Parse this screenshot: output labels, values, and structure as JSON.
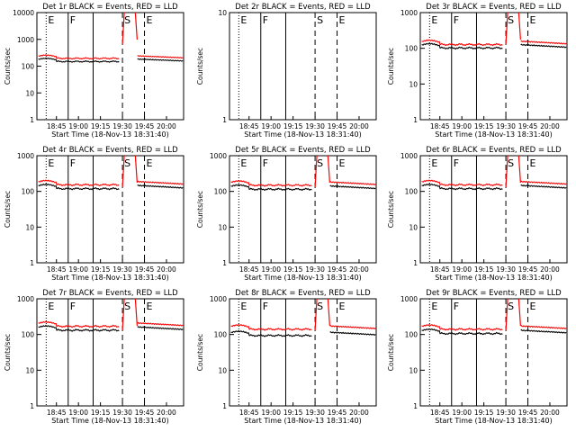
{
  "figure": {
    "panels": [
      {
        "title": "Det 1r BLACK = Events, RED = LLD",
        "markers": [
          "E",
          "F",
          "S",
          "E"
        ],
        "has_data": true,
        "black_level": 175,
        "red_level": 230,
        "y_top_label": "10000"
      },
      {
        "title": "Det 2r BLACK = Events, RED = LLD",
        "markers": [
          "E",
          "F",
          "S",
          "E"
        ],
        "has_data": false,
        "y_top_label": "10"
      },
      {
        "title": "Det 3r BLACK = Events, RED = LLD",
        "markers": [
          "E",
          "F",
          "S",
          "E"
        ],
        "has_data": true,
        "black_level": 120,
        "red_level": 150,
        "y_top_label": "1000"
      },
      {
        "title": "Det 4r BLACK = Events, RED = LLD",
        "markers": [
          "E",
          "F",
          "S",
          "E"
        ],
        "has_data": true,
        "black_level": 140,
        "red_level": 180,
        "y_top_label": "1000"
      },
      {
        "title": "Det 5r BLACK = Events, RED = LLD",
        "markers": [
          "E",
          "F",
          "S",
          "E"
        ],
        "has_data": true,
        "black_level": 135,
        "red_level": 175,
        "y_top_label": "1000"
      },
      {
        "title": "Det 6r BLACK = Events, RED = LLD",
        "markers": [
          "E",
          "F",
          "S",
          "E"
        ],
        "has_data": true,
        "black_level": 140,
        "red_level": 180,
        "y_top_label": "1000"
      },
      {
        "title": "Det 7r BLACK = Events, RED = LLD",
        "markers": [
          "E",
          "F",
          "S",
          "E"
        ],
        "has_data": true,
        "black_level": 155,
        "red_level": 200,
        "y_top_label": "1000"
      },
      {
        "title": "Det 8r BLACK = Events, RED = LLD",
        "markers": [
          "E",
          "F",
          "S",
          "E"
        ],
        "has_data": true,
        "black_level": 110,
        "red_level": 165,
        "y_top_label": "1000"
      },
      {
        "title": "Det 9r BLACK = Events, RED = LLD",
        "markers": [
          "E",
          "F",
          "S",
          "E"
        ],
        "has_data": true,
        "black_level": 125,
        "red_level": 165,
        "y_top_label": "1000"
      }
    ]
  },
  "chart_data": {
    "type": "line",
    "xlabel": "Start Time (18-Nov-13 18:31:40)",
    "ylabel": "Counts/sec",
    "yscale": "log",
    "x_ticklabels": [
      "18:45",
      "19:00",
      "19:15",
      "19:30",
      "19:45",
      "20:00"
    ],
    "y_ticklabels": [
      "1",
      "10",
      "100",
      "1000",
      "10000"
    ],
    "series": [
      {
        "name": "Events",
        "color": "#000000"
      },
      {
        "name": "LLD",
        "color": "#ff0000"
      }
    ]
  },
  "colors": {
    "events": "#000000",
    "lld": "#ff0000",
    "axes": "#000000",
    "background": "#ffffff"
  }
}
